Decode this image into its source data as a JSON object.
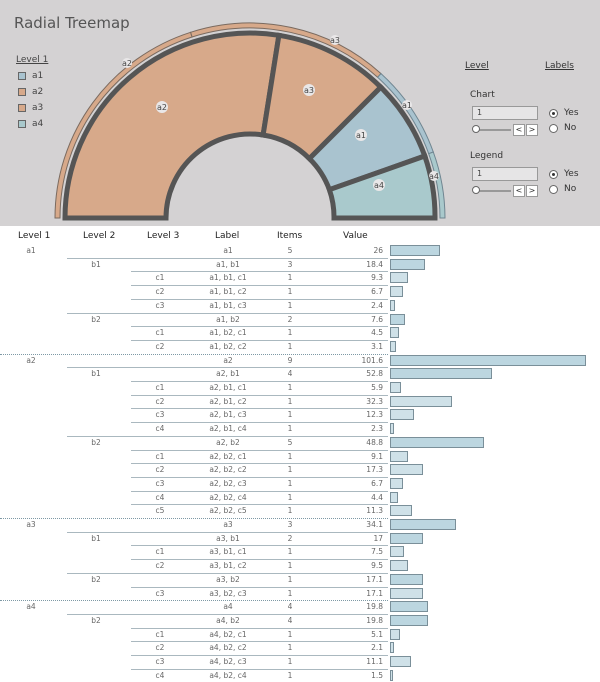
{
  "title": "Radial Treemap",
  "legend": {
    "title": "Level 1",
    "items": [
      {
        "label": "a1",
        "color": "#a9c3cf"
      },
      {
        "label": "a2",
        "color": "#d7a98a"
      },
      {
        "label": "a3",
        "color": "#d7a98a"
      },
      {
        "label": "a4",
        "color": "#a9c9cc"
      }
    ]
  },
  "radial_labels": {
    "outer_a2": "a2",
    "outer_a3": "a3",
    "outer_a1": "a1",
    "outer_a4": "a4",
    "inner_a2": "a2",
    "inner_a3": "a3",
    "inner_a1": "a1",
    "inner_a4": "a4"
  },
  "colors": {
    "a1": "#a9c3cf",
    "a2": "#d7a98a",
    "a3": "#d7a98a",
    "a4": "#a9c9cc",
    "ring": "#555555"
  },
  "controls": {
    "level_header": "Level",
    "labels_header": "Labels",
    "chart_label": "Chart",
    "chart_value": "1",
    "legend_label": "Legend",
    "legend_value": "1",
    "yes": "Yes",
    "no": "No",
    "step_left": "<",
    "step_right": ">"
  },
  "table": {
    "headers": [
      "Level 1",
      "Level 2",
      "Level 3",
      "Label",
      "Items",
      "Value"
    ],
    "rows": [
      {
        "l1": "a1",
        "l2": "",
        "l3": "",
        "label": "a1",
        "items": "5",
        "value": "26"
      },
      {
        "l1": "",
        "l2": "b1",
        "l3": "",
        "label": "a1, b1",
        "items": "3",
        "value": "18.4"
      },
      {
        "l1": "",
        "l2": "",
        "l3": "c1",
        "label": "a1, b1, c1",
        "items": "1",
        "value": "9.3"
      },
      {
        "l1": "",
        "l2": "",
        "l3": "c2",
        "label": "a1, b1, c2",
        "items": "1",
        "value": "6.7"
      },
      {
        "l1": "",
        "l2": "",
        "l3": "c3",
        "label": "a1, b1, c3",
        "items": "1",
        "value": "2.4"
      },
      {
        "l1": "",
        "l2": "b2",
        "l3": "",
        "label": "a1, b2",
        "items": "2",
        "value": "7.6"
      },
      {
        "l1": "",
        "l2": "",
        "l3": "c1",
        "label": "a1, b2, c1",
        "items": "1",
        "value": "4.5"
      },
      {
        "l1": "",
        "l2": "",
        "l3": "c2",
        "label": "a1, b2, c2",
        "items": "1",
        "value": "3.1"
      },
      {
        "l1": "a2",
        "l2": "",
        "l3": "",
        "label": "a2",
        "items": "9",
        "value": "101.6"
      },
      {
        "l1": "",
        "l2": "b1",
        "l3": "",
        "label": "a2, b1",
        "items": "4",
        "value": "52.8"
      },
      {
        "l1": "",
        "l2": "",
        "l3": "c1",
        "label": "a2, b1, c1",
        "items": "1",
        "value": "5.9"
      },
      {
        "l1": "",
        "l2": "",
        "l3": "c2",
        "label": "a2, b1, c2",
        "items": "1",
        "value": "32.3"
      },
      {
        "l1": "",
        "l2": "",
        "l3": "c3",
        "label": "a2, b1, c3",
        "items": "1",
        "value": "12.3"
      },
      {
        "l1": "",
        "l2": "",
        "l3": "c4",
        "label": "a2, b1, c4",
        "items": "1",
        "value": "2.3"
      },
      {
        "l1": "",
        "l2": "b2",
        "l3": "",
        "label": "a2, b2",
        "items": "5",
        "value": "48.8"
      },
      {
        "l1": "",
        "l2": "",
        "l3": "c1",
        "label": "a2, b2, c1",
        "items": "1",
        "value": "9.1"
      },
      {
        "l1": "",
        "l2": "",
        "l3": "c2",
        "label": "a2, b2, c2",
        "items": "1",
        "value": "17.3"
      },
      {
        "l1": "",
        "l2": "",
        "l3": "c3",
        "label": "a2, b2, c3",
        "items": "1",
        "value": "6.7"
      },
      {
        "l1": "",
        "l2": "",
        "l3": "c4",
        "label": "a2, b2, c4",
        "items": "1",
        "value": "4.4"
      },
      {
        "l1": "",
        "l2": "",
        "l3": "c5",
        "label": "a2, b2, c5",
        "items": "1",
        "value": "11.3"
      },
      {
        "l1": "a3",
        "l2": "",
        "l3": "",
        "label": "a3",
        "items": "3",
        "value": "34.1"
      },
      {
        "l1": "",
        "l2": "b1",
        "l3": "",
        "label": "a3, b1",
        "items": "2",
        "value": "17"
      },
      {
        "l1": "",
        "l2": "",
        "l3": "c1",
        "label": "a3, b1, c1",
        "items": "1",
        "value": "7.5"
      },
      {
        "l1": "",
        "l2": "",
        "l3": "c2",
        "label": "a3, b1, c2",
        "items": "1",
        "value": "9.5"
      },
      {
        "l1": "",
        "l2": "b2",
        "l3": "",
        "label": "a3, b2",
        "items": "1",
        "value": "17.1"
      },
      {
        "l1": "",
        "l2": "",
        "l3": "c3",
        "label": "a3, b2, c3",
        "items": "1",
        "value": "17.1"
      },
      {
        "l1": "a4",
        "l2": "",
        "l3": "",
        "label": "a4",
        "items": "4",
        "value": "19.8"
      },
      {
        "l1": "",
        "l2": "b2",
        "l3": "",
        "label": "a4, b2",
        "items": "4",
        "value": "19.8"
      },
      {
        "l1": "",
        "l2": "",
        "l3": "c1",
        "label": "a4, b2, c1",
        "items": "1",
        "value": "5.1"
      },
      {
        "l1": "",
        "l2": "",
        "l3": "c2",
        "label": "a4, b2, c2",
        "items": "1",
        "value": "2.1"
      },
      {
        "l1": "",
        "l2": "",
        "l3": "c3",
        "label": "a4, b2, c3",
        "items": "1",
        "value": "11.1"
      },
      {
        "l1": "",
        "l2": "",
        "l3": "c4",
        "label": "a4, b2, c4",
        "items": "1",
        "value": "1.5"
      }
    ]
  }
}
